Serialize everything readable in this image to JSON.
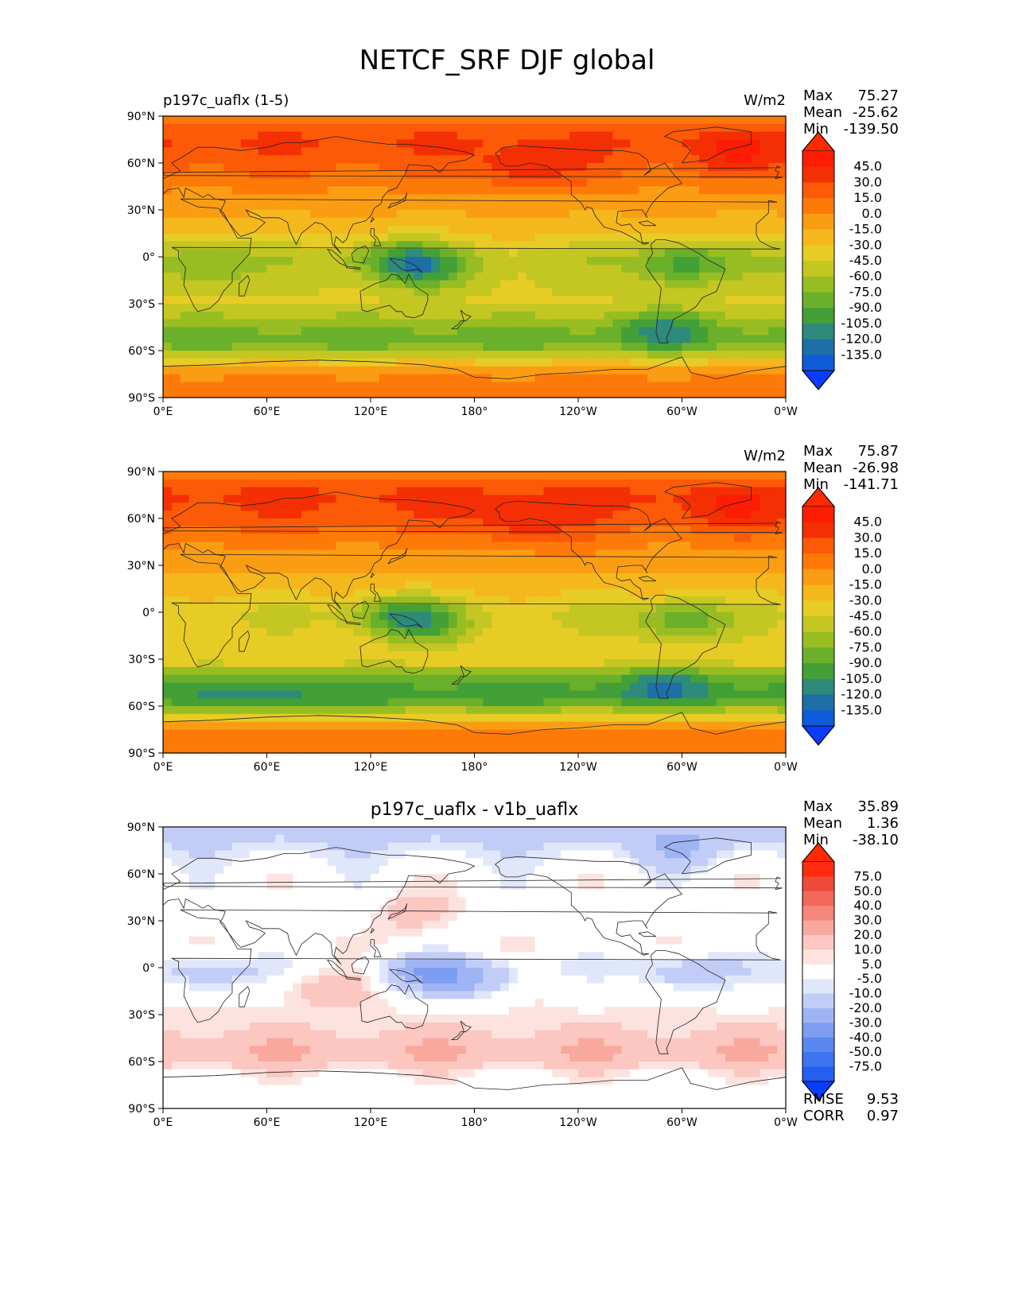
{
  "figure": {
    "title": "NETCF_SRF DJF global"
  },
  "chart_data": [
    {
      "type": "heatmap",
      "title_left": "p197c_uaflx (1-5)",
      "title_center": "",
      "units": "W/m2",
      "stats": [
        {
          "label": "Max",
          "value": "75.27"
        },
        {
          "label": "Mean",
          "value": "-25.62"
        },
        {
          "label": "Min",
          "value": "-139.50"
        }
      ],
      "x_ticks": [
        "0°E",
        "60°E",
        "120°E",
        "180°",
        "120°W",
        "60°W",
        "0°W"
      ],
      "y_ticks": [
        "90°N",
        "60°N",
        "30°N",
        "0°",
        "30°S",
        "60°S",
        "90°S"
      ],
      "xlim": [
        0,
        360
      ],
      "ylim": [
        -90,
        90
      ],
      "colorbar": {
        "levels": [
          -135,
          -120,
          -105,
          -90,
          -75,
          -60,
          -45,
          -30,
          -15,
          0,
          15,
          30,
          45
        ],
        "tick_labels": [
          "-135.0",
          "-120.0",
          "-105.0",
          "-90.0",
          "-75.0",
          "-60.0",
          "-45.0",
          "-30.0",
          "-15.0",
          "0.0",
          "15.0",
          "30.0",
          "45.0"
        ],
        "colors": [
          "#0f5cd8",
          "#1e6fa8",
          "#2e8a7a",
          "#43a037",
          "#6bb02a",
          "#98bd22",
          "#c4c622",
          "#e6cc25",
          "#f5b81c",
          "#fb9d13",
          "#fd7a09",
          "#fc5a06",
          "#f52f04",
          "#fd1c04"
        ],
        "under_color": "#0a3cff",
        "over_color": "#ff2a00"
      },
      "zonal_profile": [
        {
          "lat": 90,
          "value": 5
        },
        {
          "lat": 75,
          "value": 32
        },
        {
          "lat": 60,
          "value": 22
        },
        {
          "lat": 45,
          "value": 4
        },
        {
          "lat": 30,
          "value": -12
        },
        {
          "lat": 15,
          "value": -28
        },
        {
          "lat": 0,
          "value": -55
        },
        {
          "lat": -15,
          "value": -48
        },
        {
          "lat": -30,
          "value": -42
        },
        {
          "lat": -45,
          "value": -75
        },
        {
          "lat": -55,
          "value": -85
        },
        {
          "lat": -65,
          "value": -40
        },
        {
          "lat": -75,
          "value": 2
        },
        {
          "lat": -90,
          "value": 5
        }
      ],
      "anomalies": [
        {
          "lon": 135,
          "lat": 0,
          "value": -90
        },
        {
          "lon": 150,
          "lat": -8,
          "value": -100
        },
        {
          "lon": 300,
          "lat": -5,
          "value": -100
        },
        {
          "lon": 290,
          "lat": -45,
          "value": -110
        },
        {
          "lon": 25,
          "lat": -5,
          "value": -80
        },
        {
          "lon": 210,
          "lat": 55,
          "value": 45
        },
        {
          "lon": 330,
          "lat": 65,
          "value": 45
        }
      ]
    },
    {
      "type": "heatmap",
      "title_left": "",
      "title_center": "",
      "units": "W/m2",
      "stats": [
        {
          "label": "Max",
          "value": "75.87"
        },
        {
          "label": "Mean",
          "value": "-26.98"
        },
        {
          "label": "Min",
          "value": "-141.71"
        }
      ],
      "x_ticks": [
        "0°E",
        "60°E",
        "120°E",
        "180°",
        "120°W",
        "60°W",
        "0°W"
      ],
      "y_ticks": [
        "90°N",
        "60°N",
        "30°N",
        "0°",
        "30°S",
        "60°S",
        "90°S"
      ],
      "xlim": [
        0,
        360
      ],
      "ylim": [
        -90,
        90
      ],
      "colorbar": {
        "levels": [
          -135,
          -120,
          -105,
          -90,
          -75,
          -60,
          -45,
          -30,
          -15,
          0,
          15,
          30,
          45
        ],
        "tick_labels": [
          "-135.0",
          "-120.0",
          "-105.0",
          "-90.0",
          "-75.0",
          "-60.0",
          "-45.0",
          "-30.0",
          "-15.0",
          "0.0",
          "15.0",
          "30.0",
          "45.0"
        ],
        "colors": [
          "#0f5cd8",
          "#1e6fa8",
          "#2e8a7a",
          "#43a037",
          "#6bb02a",
          "#98bd22",
          "#c4c622",
          "#e6cc25",
          "#f5b81c",
          "#fb9d13",
          "#fd7a09",
          "#fc5a06",
          "#f52f04",
          "#fd1c04"
        ],
        "under_color": "#0a3cff",
        "over_color": "#ff2a00"
      },
      "zonal_profile": [
        {
          "lat": 90,
          "value": 8
        },
        {
          "lat": 75,
          "value": 35
        },
        {
          "lat": 60,
          "value": 25
        },
        {
          "lat": 45,
          "value": 5
        },
        {
          "lat": 30,
          "value": -10
        },
        {
          "lat": 15,
          "value": -25
        },
        {
          "lat": 0,
          "value": -45
        },
        {
          "lat": -15,
          "value": -40
        },
        {
          "lat": -30,
          "value": -35
        },
        {
          "lat": -45,
          "value": -90
        },
        {
          "lat": -55,
          "value": -100
        },
        {
          "lat": -65,
          "value": -50
        },
        {
          "lat": -75,
          "value": 5
        },
        {
          "lat": -90,
          "value": 8
        }
      ],
      "anomalies": [
        {
          "lon": 135,
          "lat": 0,
          "value": -85
        },
        {
          "lon": 150,
          "lat": -8,
          "value": -90
        },
        {
          "lon": 300,
          "lat": -5,
          "value": -90
        },
        {
          "lon": 60,
          "lat": -55,
          "value": -120
        },
        {
          "lon": 290,
          "lat": -45,
          "value": -120
        },
        {
          "lon": 210,
          "lat": 55,
          "value": 45
        },
        {
          "lon": 330,
          "lat": 65,
          "value": 45
        }
      ]
    },
    {
      "type": "heatmap",
      "title_left": "",
      "title_center": "p197c_uaflx - v1b_uaflx",
      "units": "",
      "stats": [
        {
          "label": "Max",
          "value": "35.89"
        },
        {
          "label": "Mean",
          "value": "1.36"
        },
        {
          "label": "Min",
          "value": "-38.10"
        }
      ],
      "extra_stats": [
        {
          "label": "RMSE",
          "value": "9.53"
        },
        {
          "label": "CORR",
          "value": "0.97"
        }
      ],
      "x_ticks": [
        "0°E",
        "60°E",
        "120°E",
        "180°",
        "120°W",
        "60°W",
        "0°W"
      ],
      "y_ticks": [
        "90°N",
        "60°N",
        "30°N",
        "0°",
        "30°S",
        "60°S",
        "90°S"
      ],
      "xlim": [
        0,
        360
      ],
      "ylim": [
        -90,
        90
      ],
      "colorbar": {
        "levels": [
          -75,
          -50,
          -40,
          -30,
          -20,
          -10,
          -5,
          5,
          10,
          20,
          30,
          40,
          50,
          75
        ],
        "tick_labels": [
          "-75.0",
          "-50.0",
          "-40.0",
          "-30.0",
          "-20.0",
          "-10.0",
          "-5.0",
          "5.0",
          "10.0",
          "20.0",
          "30.0",
          "40.0",
          "50.0",
          "75.0"
        ],
        "colors": [
          "#2460f0",
          "#3d74ef",
          "#5a88ee",
          "#7c9df0",
          "#9fb4f3",
          "#c2cdf7",
          "#e1e7fb",
          "#ffffff",
          "#fde3df",
          "#fbc7c0",
          "#f9a89e",
          "#f6887b",
          "#f2685a",
          "#ee4a3a",
          "#ff2a10"
        ],
        "under_color": "#0a3cff",
        "over_color": "#ff2a00"
      },
      "zonal_profile": [
        {
          "lat": 90,
          "value": -15
        },
        {
          "lat": 82,
          "value": -12
        },
        {
          "lat": 72,
          "value": -6
        },
        {
          "lat": 60,
          "value": 0
        },
        {
          "lat": 45,
          "value": 0
        },
        {
          "lat": 30,
          "value": 0
        },
        {
          "lat": 15,
          "value": 3
        },
        {
          "lat": 0,
          "value": -3
        },
        {
          "lat": -15,
          "value": 4
        },
        {
          "lat": -30,
          "value": 6
        },
        {
          "lat": -40,
          "value": 10
        },
        {
          "lat": -50,
          "value": 18
        },
        {
          "lat": -60,
          "value": 16
        },
        {
          "lat": -70,
          "value": 2
        },
        {
          "lat": -90,
          "value": 0
        }
      ],
      "anomalies": [
        {
          "lon": 25,
          "lat": -5,
          "value": -20
        },
        {
          "lon": 150,
          "lat": -5,
          "value": -25
        },
        {
          "lon": 185,
          "lat": -8,
          "value": -20
        },
        {
          "lon": 300,
          "lat": -5,
          "value": -20
        },
        {
          "lon": 95,
          "lat": -12,
          "value": 15
        },
        {
          "lon": 145,
          "lat": 35,
          "value": 15
        },
        {
          "lon": 300,
          "lat": 75,
          "value": -20
        }
      ]
    }
  ]
}
